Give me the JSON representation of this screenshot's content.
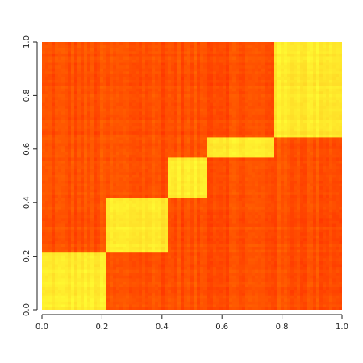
{
  "chart_data": {
    "type": "heatmap",
    "title": "",
    "xlabel": "",
    "ylabel": "",
    "xlim": [
      0,
      1
    ],
    "ylim": [
      0,
      1
    ],
    "x_ticks": [
      "0.0",
      "0.2",
      "0.4",
      "0.6",
      "0.8",
      "1.0"
    ],
    "y_ticks": [
      "0.0",
      "0.2",
      "0.4",
      "0.6",
      "0.8",
      "1.0"
    ],
    "colorscale": "heat (red to yellow)",
    "colors": {
      "low": "#ff2a00",
      "mid": "#ff6a00",
      "high": "#ffff33"
    },
    "blocks": [
      {
        "x_range": [
          0.0,
          0.21
        ],
        "y_range": [
          0.0,
          0.21
        ],
        "intensity": "high"
      },
      {
        "x_range": [
          0.21,
          0.42
        ],
        "y_range": [
          0.21,
          0.42
        ],
        "intensity": "high"
      },
      {
        "x_range": [
          0.42,
          0.55
        ],
        "y_range": [
          0.42,
          0.57
        ],
        "intensity": "high"
      },
      {
        "x_range": [
          0.55,
          0.77
        ],
        "y_range": [
          0.57,
          0.64
        ],
        "intensity": "high"
      },
      {
        "x_range": [
          0.77,
          1.0
        ],
        "y_range": [
          0.64,
          1.0
        ],
        "intensity": "high"
      }
    ],
    "off_diagonal_intensity": "low"
  }
}
